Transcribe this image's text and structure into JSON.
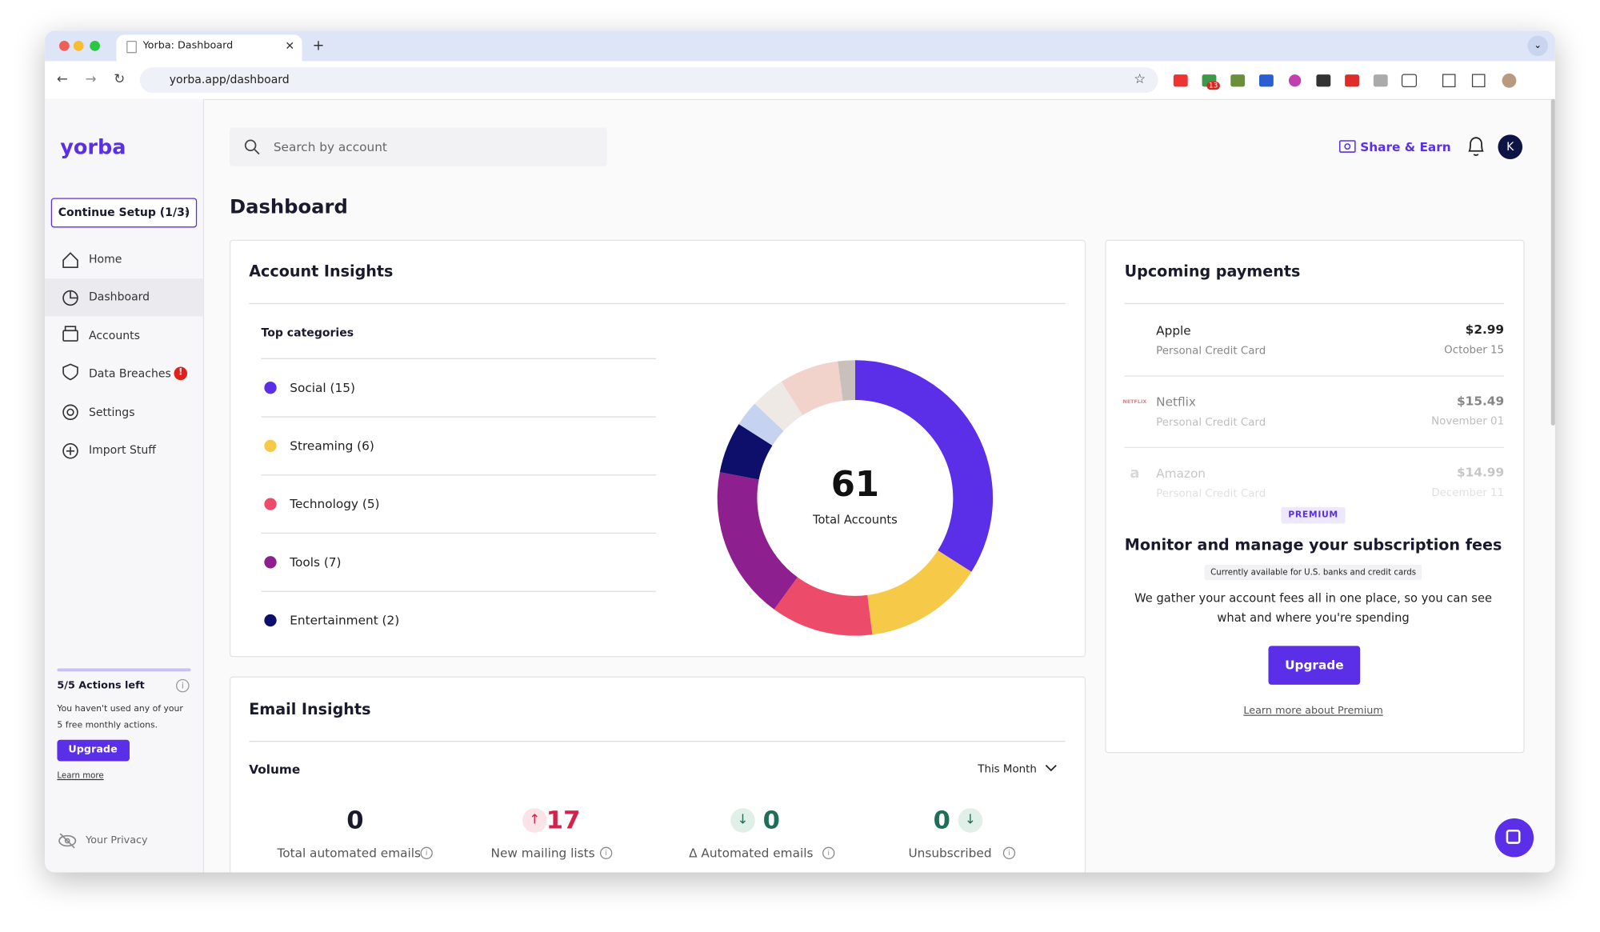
{
  "browser": {
    "tab_title": "Yorba: Dashboard",
    "url": "yorba.app/dashboard",
    "badge": "13"
  },
  "sidebar": {
    "logo": "yorba",
    "setup": "Continue Setup (1/3)",
    "nav": [
      "Home",
      "Dashboard",
      "Accounts",
      "Data Breaches",
      "Settings",
      "Import Stuff"
    ],
    "actions_title": "5/5 Actions left",
    "actions_text": "You haven't used any of your 5 free monthly actions.",
    "upgrade": "Upgrade",
    "learn_more": "Learn more",
    "privacy": "Your Privacy"
  },
  "header": {
    "search_placeholder": "Search by account",
    "share": "Share & Earn",
    "avatar": "K",
    "page_title": "Dashboard"
  },
  "account_insights": {
    "title": "Account Insights",
    "subtitle": "Top categories",
    "categories": [
      {
        "label": "Social (15)",
        "color": "#5b2ee8"
      },
      {
        "label": "Streaming (6)",
        "color": "#f7c948"
      },
      {
        "label": "Technology (5)",
        "color": "#ec4c6a"
      },
      {
        "label": "Tools (7)",
        "color": "#8e1f8e"
      },
      {
        "label": "Entertainment (2)",
        "color": "#0d0f6b"
      }
    ],
    "total": "61",
    "total_label": "Total Accounts",
    "donut": {
      "values": [
        34,
        14,
        12,
        18,
        6,
        3,
        4,
        7,
        2
      ],
      "colors": [
        "#5b2ee8",
        "#f7c948",
        "#ec4c6a",
        "#8e1f8e",
        "#0d0f6b",
        "#c5d3f0",
        "#efe9e6",
        "#f2d3cc",
        "#c9bfbb"
      ]
    }
  },
  "email_insights": {
    "title": "Email Insights",
    "volume": "Volume",
    "period": "This Month",
    "stats": [
      {
        "value": "0",
        "label": "Total automated emails"
      },
      {
        "value": "17",
        "label": "New mailing lists"
      },
      {
        "value": "0",
        "label": "Δ Automated emails"
      },
      {
        "value": "0",
        "label": "Unsubscribed"
      }
    ]
  },
  "upcoming": {
    "title": "Upcoming payments",
    "payments": [
      {
        "icon": "",
        "name": "Apple",
        "method": "Personal Credit Card",
        "amount": "$2.99",
        "date": "October 15"
      },
      {
        "icon": "NETFLIX",
        "name": "Netflix",
        "method": "Personal Credit Card",
        "amount": "$15.49",
        "date": "November 01"
      },
      {
        "icon": "a",
        "name": "Amazon",
        "method": "Personal Credit Card",
        "amount": "$14.99",
        "date": "December 11"
      }
    ],
    "badge": "PREMIUM",
    "heading": "Monitor and manage your subscription fees",
    "note": "Currently available for U.S. banks and credit cards",
    "text": "We gather your account fees all in one place, so you can see what and where you're spending",
    "button": "Upgrade",
    "link": "Learn more about Premium"
  }
}
